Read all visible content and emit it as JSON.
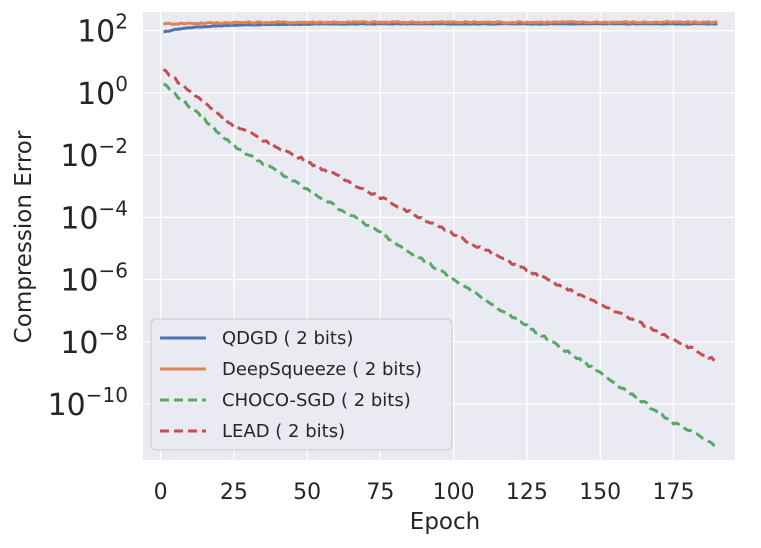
{
  "chart_data": {
    "type": "line",
    "title": "",
    "xlabel": "Epoch",
    "ylabel": "Compression Error",
    "yscale": "log",
    "xlim": [
      -6,
      196
    ],
    "ylim_exp": [
      -11.8,
      2.6
    ],
    "x_ticks": [
      "0",
      "25",
      "50",
      "75",
      "100",
      "125",
      "150",
      "175"
    ],
    "x_tick_values": [
      0,
      25,
      50,
      75,
      100,
      125,
      150,
      175
    ],
    "y_tick_exponents": [
      2,
      0,
      -2,
      -4,
      -6,
      -8,
      -10
    ],
    "y_tick_labels": [
      {
        "base": "10",
        "exp": "2"
      },
      {
        "base": "10",
        "exp": "0"
      },
      {
        "base": "10",
        "exp": "−2"
      },
      {
        "base": "10",
        "exp": "−4"
      },
      {
        "base": "10",
        "exp": "−6"
      },
      {
        "base": "10",
        "exp": "−8"
      },
      {
        "base": "10",
        "exp": "−10"
      }
    ],
    "legend_position": "lower-left",
    "grid": true,
    "series": [
      {
        "name": "QDGD ( 2 bits)",
        "color": "#4c72b0",
        "dash": "solid",
        "x": [
          1,
          5,
          10,
          20,
          30,
          40,
          50,
          75,
          100,
          125,
          150,
          175,
          190
        ],
        "log10_y": [
          1.95,
          2.04,
          2.1,
          2.16,
          2.19,
          2.2,
          2.21,
          2.22,
          2.22,
          2.22,
          2.22,
          2.22,
          2.22
        ]
      },
      {
        "name": "DeepSqueeze ( 2 bits)",
        "color": "#dd8452",
        "dash": "solid",
        "x": [
          1,
          25,
          50,
          75,
          100,
          125,
          150,
          175,
          190
        ],
        "log10_y": [
          2.22,
          2.26,
          2.27,
          2.27,
          2.27,
          2.27,
          2.27,
          2.27,
          2.27
        ]
      },
      {
        "name": "CHOCO-SGD ( 2 bits)",
        "color": "#55a868",
        "dash": "dashed",
        "x": [
          1,
          10,
          25,
          50,
          75,
          100,
          125,
          150,
          175,
          189
        ],
        "log10_y": [
          0.3,
          -0.45,
          -1.7,
          -3.1,
          -4.5,
          -6.0,
          -7.5,
          -9.0,
          -10.6,
          -11.3
        ]
      },
      {
        "name": "LEAD ( 2 bits)",
        "color": "#c44e52",
        "dash": "dashed",
        "x": [
          1,
          10,
          25,
          50,
          75,
          100,
          125,
          150,
          175,
          189
        ],
        "log10_y": [
          0.75,
          0.05,
          -1.05,
          -2.2,
          -3.35,
          -4.55,
          -5.7,
          -6.8,
          -7.9,
          -8.6
        ]
      }
    ]
  }
}
